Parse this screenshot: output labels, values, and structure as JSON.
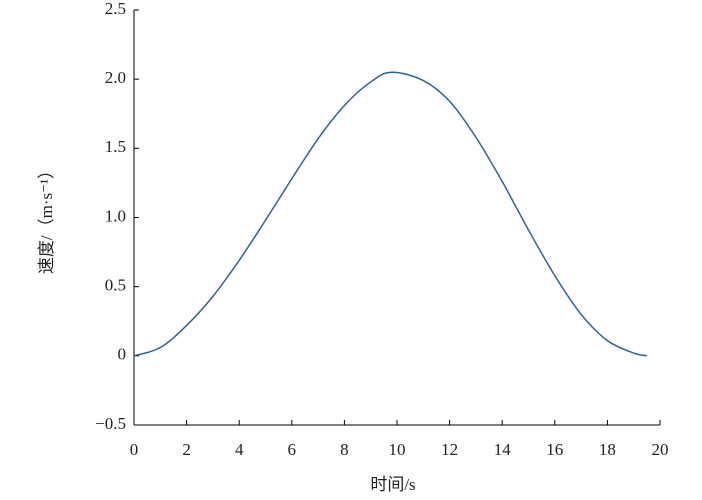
{
  "chart_data": {
    "type": "line",
    "x_label": "时间/s",
    "y_label": "速度/（m·s⁻¹）",
    "x": [
      0,
      1,
      2,
      3,
      4,
      5,
      6,
      7,
      8,
      9,
      9.8,
      11,
      12,
      13,
      14,
      15,
      16,
      17,
      18,
      19,
      19.5
    ],
    "series": [
      {
        "color": "#2e5fa3",
        "values": [
          0,
          0.06,
          0.22,
          0.43,
          0.69,
          0.98,
          1.28,
          1.57,
          1.81,
          1.98,
          2.05,
          1.99,
          1.84,
          1.58,
          1.26,
          0.91,
          0.58,
          0.3,
          0.11,
          0.02,
          0
        ]
      }
    ],
    "xlim": [
      0,
      20
    ],
    "xticks": [
      0,
      2,
      4,
      6,
      8,
      10,
      12,
      14,
      16,
      18,
      20
    ],
    "ylim": [
      -0.5,
      2.5
    ],
    "yticks": [
      {
        "value": -0.5,
        "label": "−0.5"
      },
      0,
      0.5,
      {
        "value": 1,
        "label": "1.0"
      },
      1.5,
      {
        "value": 2,
        "label": "2.0"
      },
      2.5
    ],
    "grid": false
  }
}
